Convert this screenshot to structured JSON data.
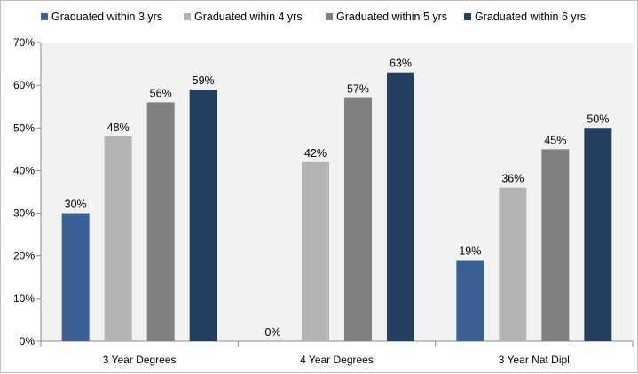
{
  "chart_data": {
    "type": "bar",
    "title": "",
    "xlabel": "",
    "ylabel": "",
    "categories": [
      "3 Year Degrees",
      "4 Year Degrees",
      "3 Year Nat Dipl"
    ],
    "series": [
      {
        "name": "Graduated within 3 yrs",
        "color": "#3a6096",
        "values": [
          30,
          0,
          19
        ],
        "labels": [
          "30%",
          "0%",
          "19%"
        ]
      },
      {
        "name": "Graduated wihin 4 yrs",
        "color": "#b4b4b4",
        "values": [
          48,
          42,
          36
        ],
        "labels": [
          "48%",
          "42%",
          "36%"
        ]
      },
      {
        "name": "Graduated within 5 yrs",
        "color": "#808080",
        "values": [
          56,
          57,
          45
        ],
        "labels": [
          "56%",
          "57%",
          "45%"
        ]
      },
      {
        "name": "Graduated within 6 yrs",
        "color": "#243e60",
        "values": [
          59,
          63,
          50
        ],
        "labels": [
          "59%",
          "63%",
          "50%"
        ]
      }
    ],
    "ylim": [
      0,
      70
    ],
    "yticks": [
      0,
      10,
      20,
      30,
      40,
      50,
      60,
      70
    ],
    "ytick_labels": [
      "0%",
      "10%",
      "20%",
      "30%",
      "40%",
      "50%",
      "60%",
      "70%"
    ],
    "grid": false,
    "legend_position": "top",
    "plot_background": "#f2f2f2"
  }
}
